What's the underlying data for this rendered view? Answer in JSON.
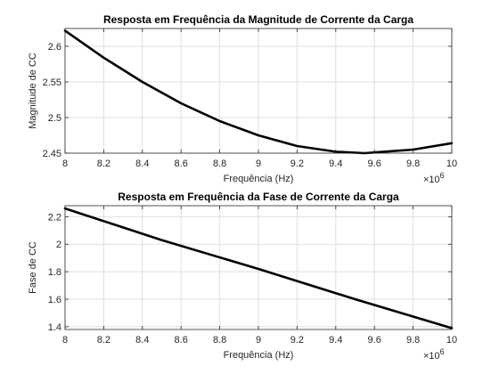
{
  "chart_data": [
    {
      "type": "line",
      "title": "Resposta em Frequência da Magnitude de Corrente da Carga",
      "xlabel": "Frequência (Hz)",
      "ylabel": "Magnitude de CC",
      "x_exponent_base": "×10",
      "x_exponent_power": "6",
      "xlim": [
        8,
        10
      ],
      "ylim": [
        2.45,
        2.625
      ],
      "xticks": [
        "8",
        "8.2",
        "8.4",
        "8.6",
        "8.8",
        "9",
        "9.2",
        "9.4",
        "9.6",
        "9.8",
        "10"
      ],
      "yticks": [
        "2.45",
        "2.5",
        "2.55",
        "2.6"
      ],
      "grid": true,
      "line_color": "#000000",
      "series": [
        {
          "x": [
            8.0,
            8.2,
            8.4,
            8.6,
            8.8,
            9.0,
            9.2,
            9.4,
            9.55,
            9.6,
            9.8,
            10.0
          ],
          "y": [
            2.622,
            2.584,
            2.55,
            2.52,
            2.495,
            2.475,
            2.46,
            2.452,
            2.45,
            2.451,
            2.455,
            2.464
          ]
        }
      ]
    },
    {
      "type": "line",
      "title": "Resposta em Frequência da Fase de Corrente da Carga",
      "xlabel": "Frequência (Hz)",
      "ylabel": "Fase de CC",
      "x_exponent_base": "×10",
      "x_exponent_power": "6",
      "xlim": [
        8,
        10
      ],
      "ylim": [
        1.38,
        2.28
      ],
      "xticks": [
        "8",
        "8.2",
        "8.4",
        "8.6",
        "8.8",
        "9",
        "9.2",
        "9.4",
        "9.6",
        "9.8",
        "10"
      ],
      "yticks": [
        "1.4",
        "1.6",
        "1.8",
        "2",
        "2.2"
      ],
      "grid": true,
      "line_color": "#000000",
      "series": [
        {
          "x": [
            8.0,
            8.5,
            9.0,
            9.5,
            10.0
          ],
          "y": [
            2.26,
            2.03,
            1.82,
            1.6,
            1.39
          ]
        }
      ]
    }
  ]
}
